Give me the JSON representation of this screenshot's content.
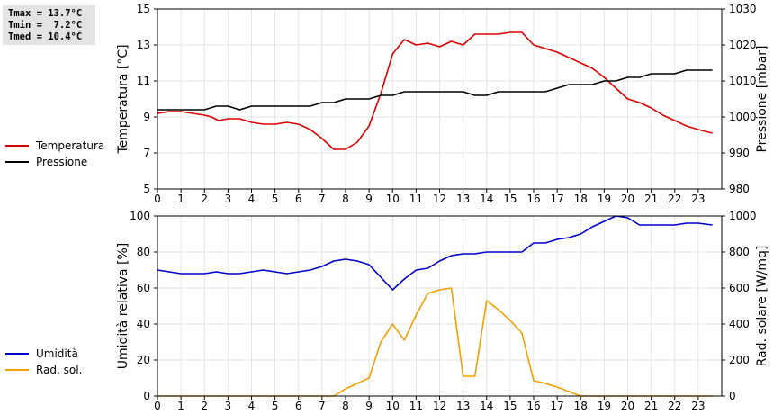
{
  "stats": {
    "tmax": "Tmax = 13.7°C",
    "tmin": "Tmin =  7.2°C",
    "tmed": "Tmed = 10.4°C"
  },
  "chart_data": [
    {
      "type": "line",
      "xlim": [
        0,
        24
      ],
      "x_ticks": [
        "0",
        "1",
        "2",
        "3",
        "4",
        "5",
        "6",
        "7",
        "8",
        "9",
        "10",
        "11",
        "12",
        "13",
        "14",
        "15",
        "16",
        "17",
        "18",
        "19",
        "20",
        "21",
        "22",
        "23"
      ],
      "ylabel": "Temperatura [°C]",
      "ylim": [
        5,
        15
      ],
      "y_ticks": [
        5,
        7,
        9,
        11,
        13,
        15
      ],
      "y2label": "Pressione [mbar]",
      "y2lim": [
        980,
        1030
      ],
      "y2_ticks": [
        980,
        990,
        1000,
        1010,
        1020,
        1030
      ],
      "grid": true,
      "legend": "left",
      "series": [
        {
          "name": "Temperatura",
          "color": "#dd0000",
          "axis": "left",
          "x": [
            0,
            0.5,
            1,
            1.5,
            2,
            2.3,
            2.6,
            3,
            3.5,
            4,
            4.5,
            5,
            5.5,
            6,
            6.5,
            7,
            7.5,
            7.8,
            8,
            8.5,
            9,
            9.5,
            10,
            10.5,
            11,
            11.5,
            12,
            12.5,
            13,
            13.5,
            14,
            14.5,
            15,
            15.5,
            16,
            16.5,
            17,
            17.5,
            18,
            18.5,
            19,
            19.5,
            20,
            20.5,
            21,
            21.5,
            22,
            22.5,
            23,
            23.6
          ],
          "values": [
            9.2,
            9.3,
            9.3,
            9.2,
            9.1,
            9.0,
            8.8,
            8.9,
            8.9,
            8.7,
            8.6,
            8.6,
            8.7,
            8.6,
            8.3,
            7.8,
            7.2,
            7.2,
            7.2,
            7.6,
            8.5,
            10.3,
            12.5,
            13.3,
            13.0,
            13.1,
            12.9,
            13.2,
            13.0,
            13.6,
            13.6,
            13.6,
            13.7,
            13.7,
            13.0,
            12.8,
            12.6,
            12.3,
            12.0,
            11.7,
            11.2,
            10.6,
            10.0,
            9.8,
            9.5,
            9.1,
            8.8,
            8.5,
            8.3,
            8.1
          ]
        },
        {
          "name": "Pressione",
          "color": "#000000",
          "axis": "right",
          "x": [
            0,
            1,
            2,
            2.5,
            3,
            3.5,
            4,
            5,
            6,
            6.5,
            7,
            7.5,
            8,
            8.5,
            9,
            9.5,
            10,
            10.5,
            11,
            11.5,
            12,
            12.5,
            13,
            13.5,
            14,
            14.5,
            15,
            15.5,
            16,
            16.5,
            17,
            17.5,
            18,
            18.5,
            19,
            19.5,
            20,
            20.5,
            21,
            21.5,
            22,
            22.5,
            23,
            23.6
          ],
          "values": [
            1002,
            1002,
            1002,
            1003,
            1003,
            1002,
            1003,
            1003,
            1003,
            1003,
            1004,
            1004,
            1005,
            1005,
            1005,
            1006,
            1006,
            1007,
            1007,
            1007,
            1007,
            1007,
            1007,
            1006,
            1006,
            1007,
            1007,
            1007,
            1007,
            1007,
            1008,
            1009,
            1009,
            1009,
            1010,
            1010,
            1011,
            1011,
            1012,
            1012,
            1012,
            1013,
            1013,
            1013
          ]
        }
      ]
    },
    {
      "type": "line",
      "xlim": [
        0,
        24
      ],
      "x_ticks": [
        "0",
        "1",
        "2",
        "3",
        "4",
        "5",
        "6",
        "7",
        "8",
        "9",
        "10",
        "11",
        "12",
        "13",
        "14",
        "15",
        "16",
        "17",
        "18",
        "19",
        "20",
        "21",
        "22",
        "23"
      ],
      "ylabel": "Umidità relativa [%]",
      "ylim": [
        0,
        100
      ],
      "y_ticks": [
        0,
        20,
        40,
        60,
        80,
        100
      ],
      "y2label": "Rad. solare [W/mq]",
      "y2lim": [
        0,
        1000
      ],
      "y2_ticks": [
        0,
        200,
        400,
        600,
        800,
        1000
      ],
      "grid": true,
      "legend": "left",
      "series": [
        {
          "name": "Umidità",
          "color": "#0000cc",
          "axis": "left",
          "x": [
            0,
            0.5,
            1,
            1.5,
            2,
            2.5,
            3,
            3.5,
            4,
            4.5,
            5,
            5.5,
            6,
            6.5,
            7,
            7.5,
            8,
            8.5,
            9,
            9.5,
            10,
            10.5,
            11,
            11.5,
            12,
            12.5,
            13,
            13.5,
            14,
            14.5,
            15,
            15.5,
            16,
            16.5,
            17,
            17.5,
            18,
            18.5,
            19,
            19.5,
            20,
            20.5,
            21,
            21.5,
            22,
            22.5,
            23,
            23.6
          ],
          "values": [
            70,
            69,
            68,
            68,
            68,
            69,
            68,
            68,
            69,
            70,
            69,
            68,
            69,
            70,
            72,
            75,
            76,
            75,
            73,
            66,
            59,
            65,
            70,
            71,
            75,
            78,
            79,
            79,
            80,
            80,
            80,
            80,
            85,
            85,
            87,
            88,
            90,
            94,
            97,
            100,
            99,
            95,
            95,
            95,
            95,
            96,
            96,
            95
          ]
        },
        {
          "name": "Rad. sol.",
          "color": "#f0a000",
          "axis": "right",
          "x": [
            0,
            7,
            7.5,
            8,
            9,
            9.5,
            10,
            10.5,
            11,
            11.5,
            12,
            12.5,
            13,
            13.5,
            14,
            14.5,
            15,
            15.5,
            16,
            16.5,
            17,
            17.5,
            18,
            19,
            20,
            21,
            22,
            23,
            23.6
          ],
          "values": [
            0,
            0,
            0,
            40,
            100,
            300,
            400,
            310,
            450,
            570,
            590,
            600,
            110,
            110,
            530,
            480,
            420,
            350,
            85,
            70,
            50,
            25,
            0,
            0,
            0,
            0,
            0,
            0,
            0
          ]
        }
      ]
    }
  ]
}
